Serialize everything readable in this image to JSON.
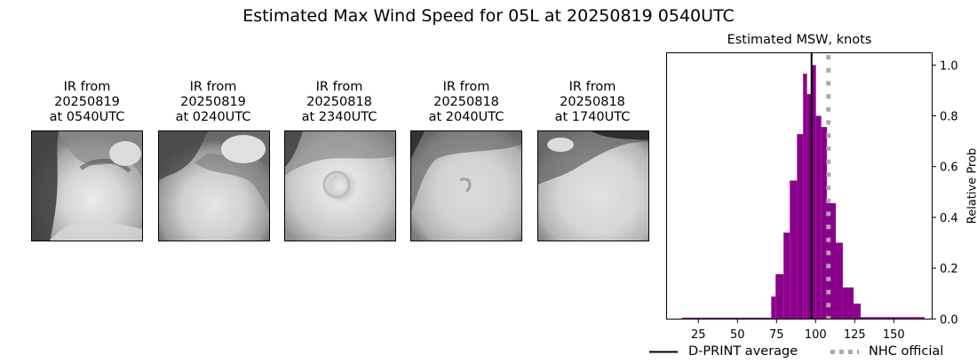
{
  "figure": {
    "suptitle": "Estimated Max Wind Speed for 05L at 20250819 0540UTC"
  },
  "panels": [
    {
      "line1": "IR from",
      "line2": "20250819",
      "line3": "at 0540UTC"
    },
    {
      "line1": "IR from",
      "line2": "20250819",
      "line3": "at 0240UTC"
    },
    {
      "line1": "IR from",
      "line2": "20250818",
      "line3": "at 2340UTC"
    },
    {
      "line1": "IR from",
      "line2": "20250818",
      "line3": "at 2040UTC"
    },
    {
      "line1": "IR from",
      "line2": "20250818",
      "line3": "at 1740UTC"
    }
  ],
  "legend": {
    "dprint_label": "D-PRINT average",
    "nhc_label": "NHC official"
  },
  "colors": {
    "bar": "#8b008b",
    "dprint_line": "#000000",
    "nhc_line": "#a9a9a9"
  },
  "chart_data": {
    "type": "bar",
    "title": "Estimated MSW, knots",
    "xlabel": "",
    "ylabel": "Relative Prob",
    "xlim": [
      5,
      175
    ],
    "ylim": [
      0,
      1.05
    ],
    "xticks": [
      25,
      50,
      75,
      100,
      125,
      150
    ],
    "yticks": [
      0.0,
      0.2,
      0.4,
      0.6,
      0.8,
      1.0
    ],
    "ytick_labels": [
      "0.0",
      "0.2",
      "0.4",
      "0.6",
      "0.8",
      "1.0"
    ],
    "y_axis_position": "right",
    "grid": false,
    "legend_position": "below",
    "bins": [
      {
        "x0": 14.6,
        "x1": 71.6,
        "value": 0.005
      },
      {
        "x0": 71.6,
        "x1": 74.4,
        "value": 0.088
      },
      {
        "x0": 74.4,
        "x1": 79.5,
        "value": 0.176
      },
      {
        "x0": 79.5,
        "x1": 83.5,
        "value": 0.34
      },
      {
        "x0": 83.5,
        "x1": 88.1,
        "value": 0.545
      },
      {
        "x0": 88.1,
        "x1": 92.0,
        "value": 0.728
      },
      {
        "x0": 92.0,
        "x1": 94.5,
        "value": 0.966
      },
      {
        "x0": 94.5,
        "x1": 97.2,
        "value": 0.886
      },
      {
        "x0": 97.2,
        "x1": 100.2,
        "value": 1.0
      },
      {
        "x0": 100.2,
        "x1": 103.6,
        "value": 0.8
      },
      {
        "x0": 103.6,
        "x1": 107.2,
        "value": 0.756
      },
      {
        "x0": 107.2,
        "x1": 112.9,
        "value": 0.456
      },
      {
        "x0": 112.9,
        "x1": 117.4,
        "value": 0.3
      },
      {
        "x0": 117.4,
        "x1": 124.3,
        "value": 0.124
      },
      {
        "x0": 124.3,
        "x1": 128.8,
        "value": 0.06
      },
      {
        "x0": 128.8,
        "x1": 169.7,
        "value": 0.007
      }
    ],
    "lines": [
      {
        "name": "D-PRINT average",
        "x": 97.4,
        "style": "solid",
        "color": "#000000"
      },
      {
        "name": "NHC official",
        "x": 108.2,
        "style": "dotted",
        "color": "#a9a9a9"
      }
    ]
  }
}
